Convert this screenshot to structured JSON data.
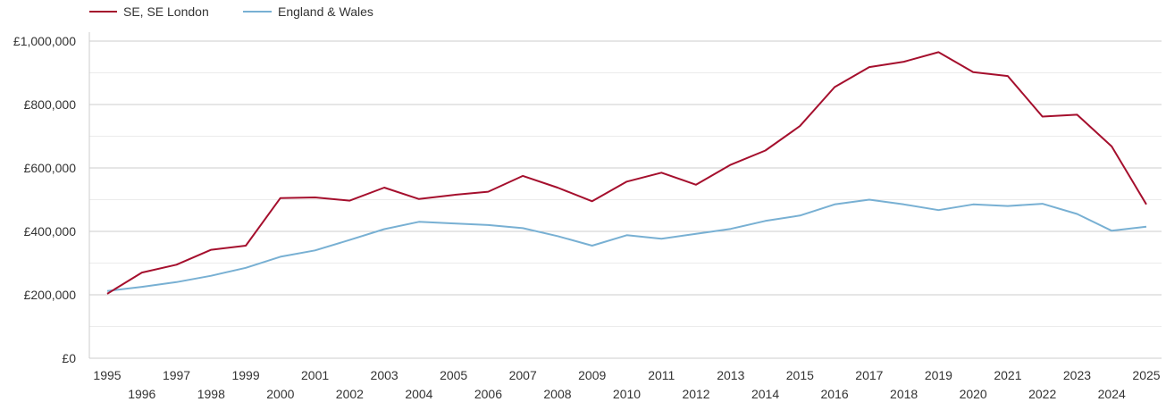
{
  "chart_data": {
    "type": "line",
    "title": "",
    "xlabel": "",
    "ylabel": "",
    "x": [
      1995,
      1996,
      1997,
      1998,
      1999,
      2000,
      2001,
      2002,
      2003,
      2004,
      2005,
      2006,
      2007,
      2008,
      2009,
      2010,
      2011,
      2012,
      2013,
      2014,
      2015,
      2016,
      2017,
      2018,
      2019,
      2020,
      2021,
      2022,
      2023,
      2024,
      2025
    ],
    "x_tick_labels": [
      "1995",
      "1996",
      "1997",
      "1998",
      "1999",
      "2000",
      "2001",
      "2002",
      "2003",
      "2004",
      "2005",
      "2006",
      "2007",
      "2008",
      "2009",
      "2010",
      "2011",
      "2012",
      "2013",
      "2014",
      "2015",
      "2016",
      "2017",
      "2018",
      "2019",
      "2020",
      "2021",
      "2022",
      "2023",
      "2024",
      "2025"
    ],
    "ylim": [
      0,
      1000000
    ],
    "y_ticks": [
      0,
      200000,
      400000,
      600000,
      800000,
      1000000
    ],
    "y_tick_labels": [
      "£0",
      "£200,000",
      "£400,000",
      "£600,000",
      "£800,000",
      "£1,000,000"
    ],
    "grid": true,
    "legend_position": "top-left",
    "series": [
      {
        "name": "SE, SE London",
        "color": "#a50f2d",
        "values": [
          203000,
          270000,
          295000,
          342000,
          355000,
          505000,
          507000,
          497000,
          538000,
          502000,
          515000,
          525000,
          575000,
          538000,
          495000,
          557000,
          585000,
          547000,
          610000,
          655000,
          732000,
          855000,
          918000,
          935000,
          965000,
          902000,
          890000,
          762000,
          768000,
          668000,
          485000
        ]
      },
      {
        "name": "England & Wales",
        "color": "#78b0d3",
        "values": [
          212000,
          225000,
          240000,
          260000,
          285000,
          320000,
          340000,
          373000,
          407000,
          430000,
          425000,
          420000,
          410000,
          385000,
          355000,
          388000,
          377000,
          392000,
          408000,
          433000,
          450000,
          485000,
          500000,
          485000,
          467000,
          485000,
          480000,
          487000,
          455000,
          402000,
          415000
        ]
      }
    ]
  }
}
